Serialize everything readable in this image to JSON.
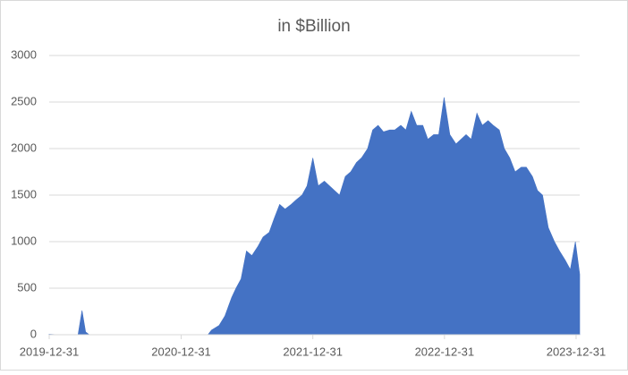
{
  "chart_data": {
    "type": "area",
    "title": "in $Billion",
    "x": [
      "2019-12-31",
      "2020-01-15",
      "2020-02-01",
      "2020-03-20",
      "2020-03-31",
      "2020-04-10",
      "2020-04-20",
      "2021-03-15",
      "2021-03-25",
      "2021-04-15",
      "2021-05-01",
      "2021-05-20",
      "2021-06-01",
      "2021-06-15",
      "2021-06-30",
      "2021-07-15",
      "2021-08-01",
      "2021-08-15",
      "2021-09-01",
      "2021-09-15",
      "2021-09-30",
      "2021-10-15",
      "2021-11-01",
      "2021-11-15",
      "2021-12-01",
      "2021-12-15",
      "2021-12-31",
      "2022-01-15",
      "2022-02-01",
      "2022-02-15",
      "2022-03-01",
      "2022-03-15",
      "2022-03-31",
      "2022-04-15",
      "2022-05-01",
      "2022-05-15",
      "2022-06-01",
      "2022-06-15",
      "2022-06-30",
      "2022-07-15",
      "2022-08-01",
      "2022-08-15",
      "2022-09-01",
      "2022-09-15",
      "2022-09-30",
      "2022-10-15",
      "2022-11-01",
      "2022-11-15",
      "2022-12-01",
      "2022-12-15",
      "2022-12-30",
      "2023-01-15",
      "2023-02-01",
      "2023-02-15",
      "2023-03-01",
      "2023-03-15",
      "2023-03-31",
      "2023-04-15",
      "2023-05-01",
      "2023-05-15",
      "2023-06-01",
      "2023-06-15",
      "2023-06-30",
      "2023-07-15",
      "2023-08-01",
      "2023-08-15",
      "2023-09-01",
      "2023-09-15",
      "2023-09-29",
      "2023-10-15",
      "2023-11-01",
      "2023-11-15",
      "2023-12-01",
      "2023-12-15",
      "2023-12-29",
      "2024-01-10"
    ],
    "values": [
      5,
      2,
      0,
      0,
      260,
      30,
      0,
      0,
      50,
      100,
      200,
      400,
      500,
      600,
      900,
      850,
      950,
      1050,
      1100,
      1250,
      1400,
      1350,
      1400,
      1450,
      1500,
      1600,
      1900,
      1600,
      1650,
      1600,
      1550,
      1500,
      1700,
      1750,
      1850,
      1900,
      2000,
      2200,
      2250,
      2180,
      2200,
      2200,
      2250,
      2200,
      2400,
      2250,
      2250,
      2100,
      2150,
      2150,
      2550,
      2150,
      2050,
      2100,
      2150,
      2100,
      2380,
      2250,
      2300,
      2250,
      2200,
      2000,
      1900,
      1750,
      1800,
      1800,
      1700,
      1550,
      1500,
      1150,
      1000,
      900,
      800,
      700,
      1000,
      650
    ],
    "color": "#4472c4",
    "xlim": [
      "2019-12-31",
      "2024-01-10"
    ],
    "xticks": [
      "2019-12-31",
      "2020-12-31",
      "2021-12-31",
      "2022-12-31",
      "2023-12-31"
    ],
    "ylim": [
      0,
      3000
    ],
    "yticks": [
      0,
      500,
      1000,
      1500,
      2000,
      2500,
      3000
    ],
    "grid": true
  }
}
